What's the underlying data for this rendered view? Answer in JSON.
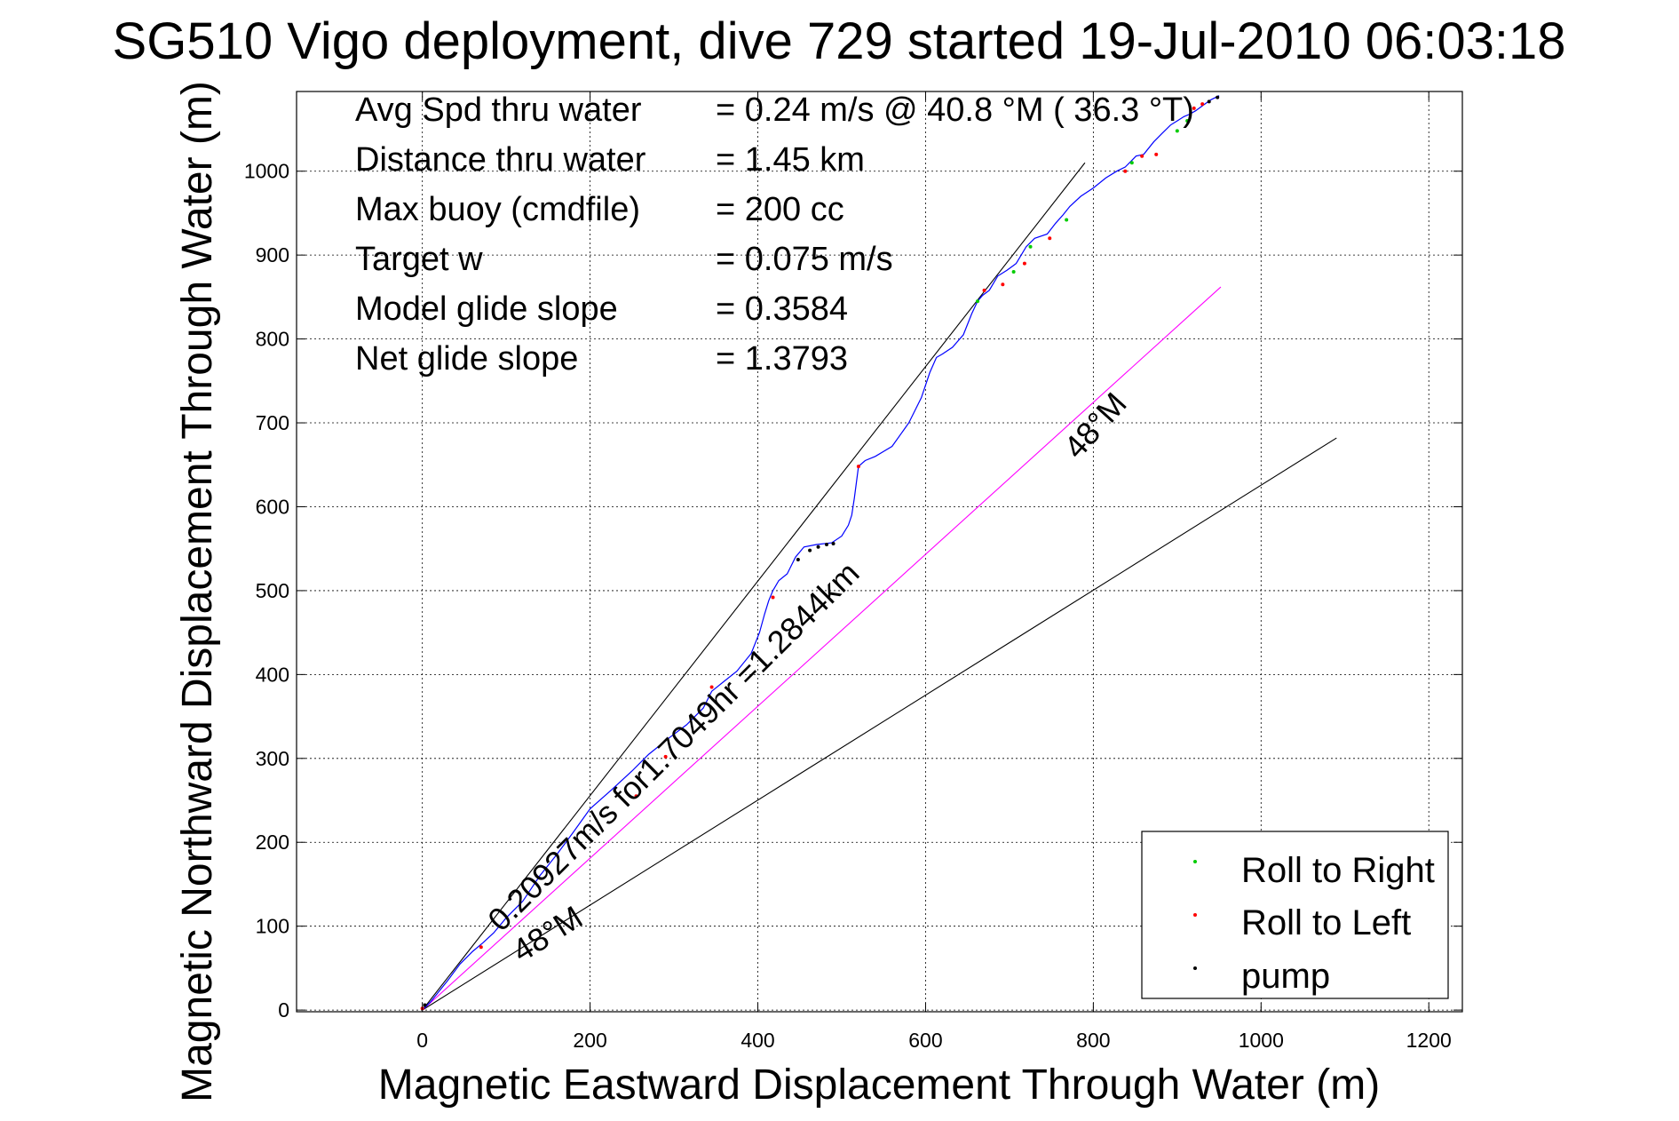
{
  "chart_data": {
    "type": "line",
    "title": "SG510 Vigo deployment, dive 729 started 19-Jul-2010 06:03:18",
    "xlabel": "Magnetic Eastward Displacement Through Water (m)",
    "ylabel": "Magnetic Northward Displacement Through Water (m)",
    "xlim": [
      -150,
      1240
    ],
    "ylim": [
      -2,
      1095
    ],
    "xticks": [
      0,
      200,
      400,
      600,
      800,
      1000,
      1200
    ],
    "yticks": [
      0,
      100,
      200,
      300,
      400,
      500,
      600,
      700,
      800,
      900,
      1000
    ],
    "grid": true,
    "stats": [
      {
        "label": "Avg Spd thru water",
        "value": "=  0.24 m/s @  40.8 °M ( 36.3 °T)"
      },
      {
        "label": "Distance thru water",
        "value": "=  1.45 km"
      },
      {
        "label": "Max buoy (cmdfile)",
        "value": "= 200 cc"
      },
      {
        "label": "Target w",
        "value": "= 0.075 m/s"
      },
      {
        "label": "Model glide slope",
        "value": "= 0.3584"
      },
      {
        "label": "Net glide slope",
        "value": "= 1.3793"
      }
    ],
    "reference_lines": [
      {
        "x": [
          0,
          790
        ],
        "y": [
          0,
          1010
        ],
        "color": "#000000"
      },
      {
        "x": [
          0,
          1090
        ],
        "y": [
          0,
          682
        ],
        "color": "#000000"
      },
      {
        "x": [
          0,
          952
        ],
        "y": [
          0,
          862
        ],
        "color": "#ff00ff"
      }
    ],
    "track": {
      "color": "#0000ff",
      "x": [
        0,
        5,
        10,
        18,
        30,
        45,
        60,
        72,
        85,
        100,
        120,
        140,
        160,
        180,
        200,
        225,
        250,
        270,
        295,
        315,
        335,
        345,
        360,
        375,
        392,
        402,
        408,
        413,
        418,
        425,
        435,
        445,
        455,
        470,
        488,
        500,
        508,
        512,
        515,
        520,
        528,
        540,
        560,
        580,
        595,
        605,
        613,
        620,
        632,
        645,
        655,
        662,
        668,
        676,
        686,
        697,
        708,
        720,
        730,
        745,
        755,
        764,
        772,
        785,
        800,
        815,
        828,
        838,
        845,
        851,
        860,
        872,
        882,
        892,
        900,
        908,
        915,
        922,
        930,
        940,
        950
      ],
      "y": [
        0,
        5,
        10,
        20,
        35,
        55,
        70,
        80,
        92,
        110,
        130,
        160,
        185,
        212,
        240,
        262,
        285,
        305,
        325,
        340,
        360,
        380,
        392,
        404,
        425,
        450,
        472,
        488,
        500,
        512,
        520,
        540,
        552,
        555,
        557,
        565,
        578,
        590,
        610,
        648,
        655,
        660,
        672,
        700,
        730,
        760,
        778,
        782,
        790,
        805,
        830,
        845,
        852,
        858,
        875,
        882,
        890,
        910,
        920,
        925,
        938,
        948,
        958,
        970,
        980,
        992,
        1000,
        1005,
        1012,
        1018,
        1020,
        1035,
        1045,
        1055,
        1060,
        1065,
        1068,
        1072,
        1078,
        1085,
        1090
      ]
    },
    "markers": [
      {
        "name": "Roll to Right",
        "color": "#00cc00",
        "x": [
          662,
          705,
          725,
          768,
          846,
          900,
          912
        ],
        "y": [
          845,
          880,
          910,
          942,
          1010,
          1048,
          1060
        ]
      },
      {
        "name": "Roll to Left",
        "color": "#ff0000",
        "x": [
          0,
          70,
          255,
          290,
          345,
          418,
          520,
          670,
          692,
          718,
          748,
          838,
          858,
          875,
          920,
          930
        ],
        "y": [
          2,
          75,
          255,
          302,
          385,
          492,
          648,
          858,
          865,
          890,
          920,
          1000,
          1018,
          1020,
          1075,
          1080
        ]
      },
      {
        "name": "pump",
        "color": "#000000",
        "x": [
          3,
          448,
          462,
          472,
          482,
          490,
          938,
          948
        ],
        "y": [
          6,
          537,
          548,
          552,
          555,
          556,
          1083,
          1088
        ]
      }
    ],
    "annotations": [
      {
        "text": "48°M",
        "x": 782,
        "y": 655,
        "angle": -48
      },
      {
        "text": "0.20927m/s for1.7049hr =1.2844km",
        "x": 94,
        "y": 92,
        "angle": -44.8
      },
      {
        "text": "48°M",
        "x": 118,
        "y": 56,
        "angle": -32
      }
    ],
    "legend": {
      "position": "bottom-right",
      "entries": [
        "Roll to Right",
        "Roll to Left",
        "pump"
      ]
    }
  }
}
